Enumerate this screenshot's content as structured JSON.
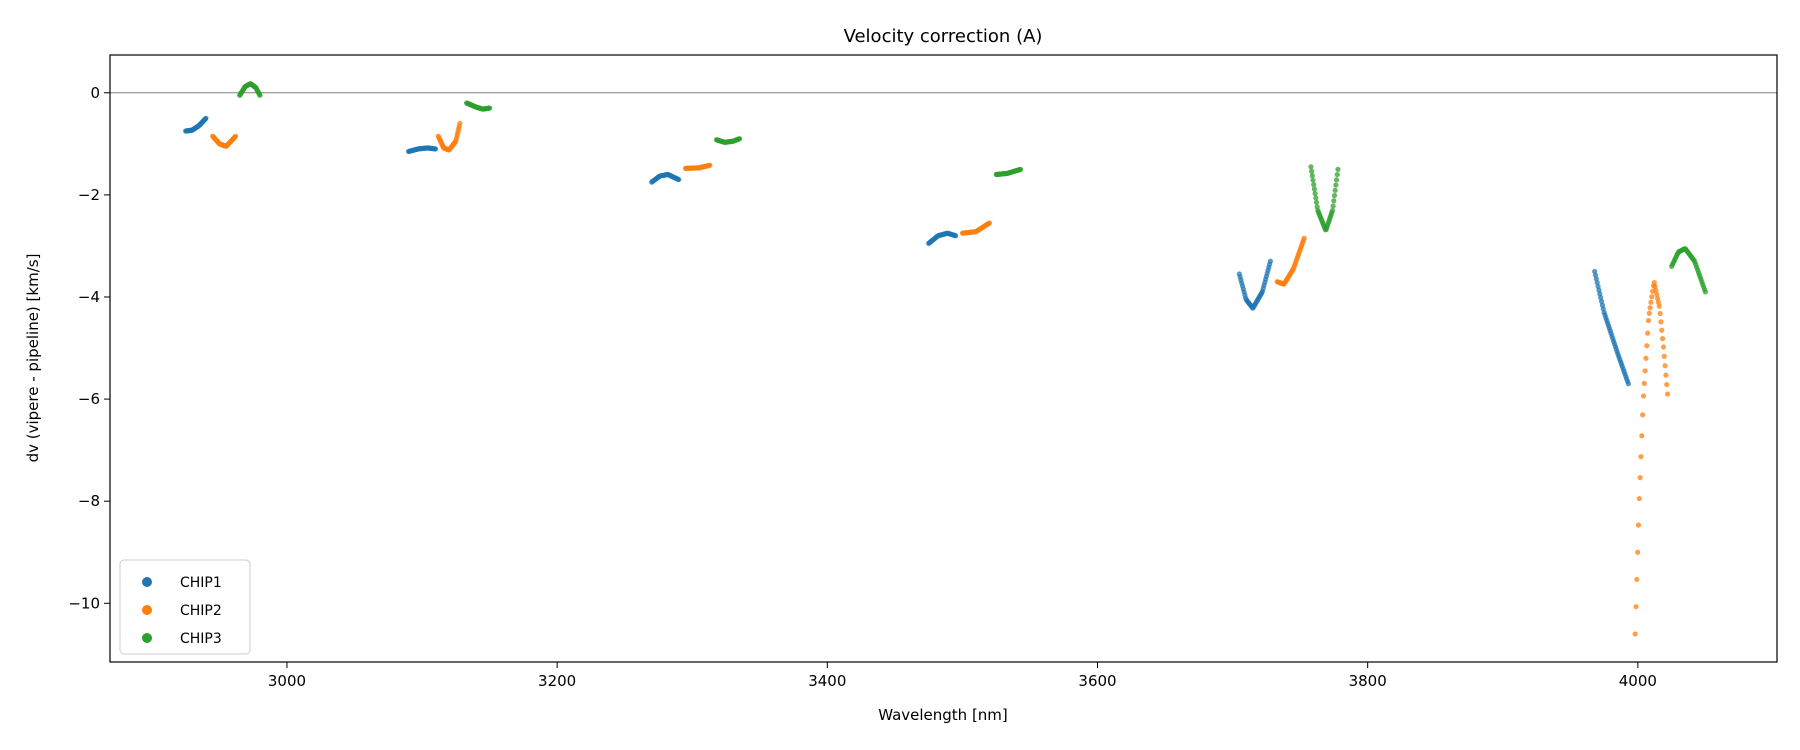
{
  "chart_data": {
    "type": "scatter",
    "title": "Velocity correction (A)",
    "xlabel": "Wavelength [nm]",
    "ylabel": "dv (vipere - pipeline) [km/s]",
    "xlim": [
      2869,
      4103
    ],
    "ylim": [
      -11.15,
      0.74
    ],
    "xticks": [
      3000,
      3200,
      3400,
      3600,
      3800,
      4000
    ],
    "xtick_labels": [
      "3000",
      "3200",
      "3400",
      "3600",
      "3800",
      "4000"
    ],
    "yticks": [
      0,
      -2,
      -4,
      -6,
      -8,
      -10
    ],
    "ytick_labels": [
      "0",
      "−2",
      "−4",
      "−6",
      "−8",
      "−10"
    ],
    "reference_line_y": 0,
    "grid": false,
    "legend": {
      "placement": "lower-left",
      "entries": [
        "CHIP1",
        "CHIP2",
        "CHIP3"
      ]
    },
    "series": [
      {
        "name": "CHIP1",
        "color": "#1f77b4",
        "segments": [
          {
            "x": [
              2925,
              2930,
              2935,
              2940
            ],
            "y": [
              -0.75,
              -0.73,
              -0.64,
              -0.5
            ]
          },
          {
            "x": [
              3090,
              3097,
              3104,
              3110
            ],
            "y": [
              -1.15,
              -1.1,
              -1.08,
              -1.1
            ]
          },
          {
            "x": [
              3270,
              3276,
              3282,
              3290
            ],
            "y": [
              -1.75,
              -1.63,
              -1.6,
              -1.7
            ]
          },
          {
            "x": [
              3475,
              3482,
              3489,
              3495
            ],
            "y": [
              -2.95,
              -2.8,
              -2.75,
              -2.8
            ]
          },
          {
            "x": [
              3705,
              3710,
              3715,
              3722,
              3728
            ],
            "y": [
              -3.55,
              -4.05,
              -4.22,
              -3.9,
              -3.3
            ]
          },
          {
            "x": [
              3968,
              3975,
              3985,
              3993
            ],
            "y": [
              -3.5,
              -4.3,
              -5.1,
              -5.7
            ]
          }
        ]
      },
      {
        "name": "CHIP2",
        "color": "#ff7f0e",
        "segments": [
          {
            "x": [
              2945,
              2950,
              2955,
              2962
            ],
            "y": [
              -0.85,
              -1.0,
              -1.05,
              -0.85
            ]
          },
          {
            "x": [
              3112,
              3116,
              3120,
              3125,
              3128
            ],
            "y": [
              -0.85,
              -1.08,
              -1.12,
              -0.95,
              -0.6
            ]
          },
          {
            "x": [
              3295,
              3305,
              3313
            ],
            "y": [
              -1.48,
              -1.47,
              -1.42
            ]
          },
          {
            "x": [
              3500,
              3510,
              3520
            ],
            "y": [
              -2.75,
              -2.72,
              -2.55
            ]
          },
          {
            "x": [
              3733,
              3738,
              3745,
              3753
            ],
            "y": [
              -3.7,
              -3.75,
              -3.45,
              -2.85
            ]
          },
          {
            "x": [
              3998,
              4001,
              4004,
              4008,
              4012,
              4016,
              4019,
              4022
            ],
            "y": [
              -10.6,
              -8.0,
              -6.0,
              -4.4,
              -3.7,
              -4.2,
              -5.0,
              -5.9
            ]
          }
        ]
      },
      {
        "name": "CHIP3",
        "color": "#2ca02c",
        "segments": [
          {
            "x": [
              2965,
              2969,
              2973,
              2977,
              2980
            ],
            "y": [
              -0.05,
              0.12,
              0.18,
              0.1,
              -0.05
            ]
          },
          {
            "x": [
              3133,
              3140,
              3145,
              3150
            ],
            "y": [
              -0.2,
              -0.28,
              -0.32,
              -0.3
            ]
          },
          {
            "x": [
              3318,
              3324,
              3330,
              3335
            ],
            "y": [
              -0.92,
              -0.97,
              -0.95,
              -0.9
            ]
          },
          {
            "x": [
              3525,
              3533,
              3543
            ],
            "y": [
              -1.6,
              -1.58,
              -1.5
            ]
          },
          {
            "x": [
              3758,
              3763,
              3769,
              3774,
              3778
            ],
            "y": [
              -1.45,
              -2.3,
              -2.7,
              -2.3,
              -1.5
            ]
          },
          {
            "x": [
              4025,
              4030,
              4035,
              4042,
              4050
            ],
            "y": [
              -3.4,
              -3.12,
              -3.05,
              -3.3,
              -3.9
            ]
          }
        ]
      }
    ]
  }
}
